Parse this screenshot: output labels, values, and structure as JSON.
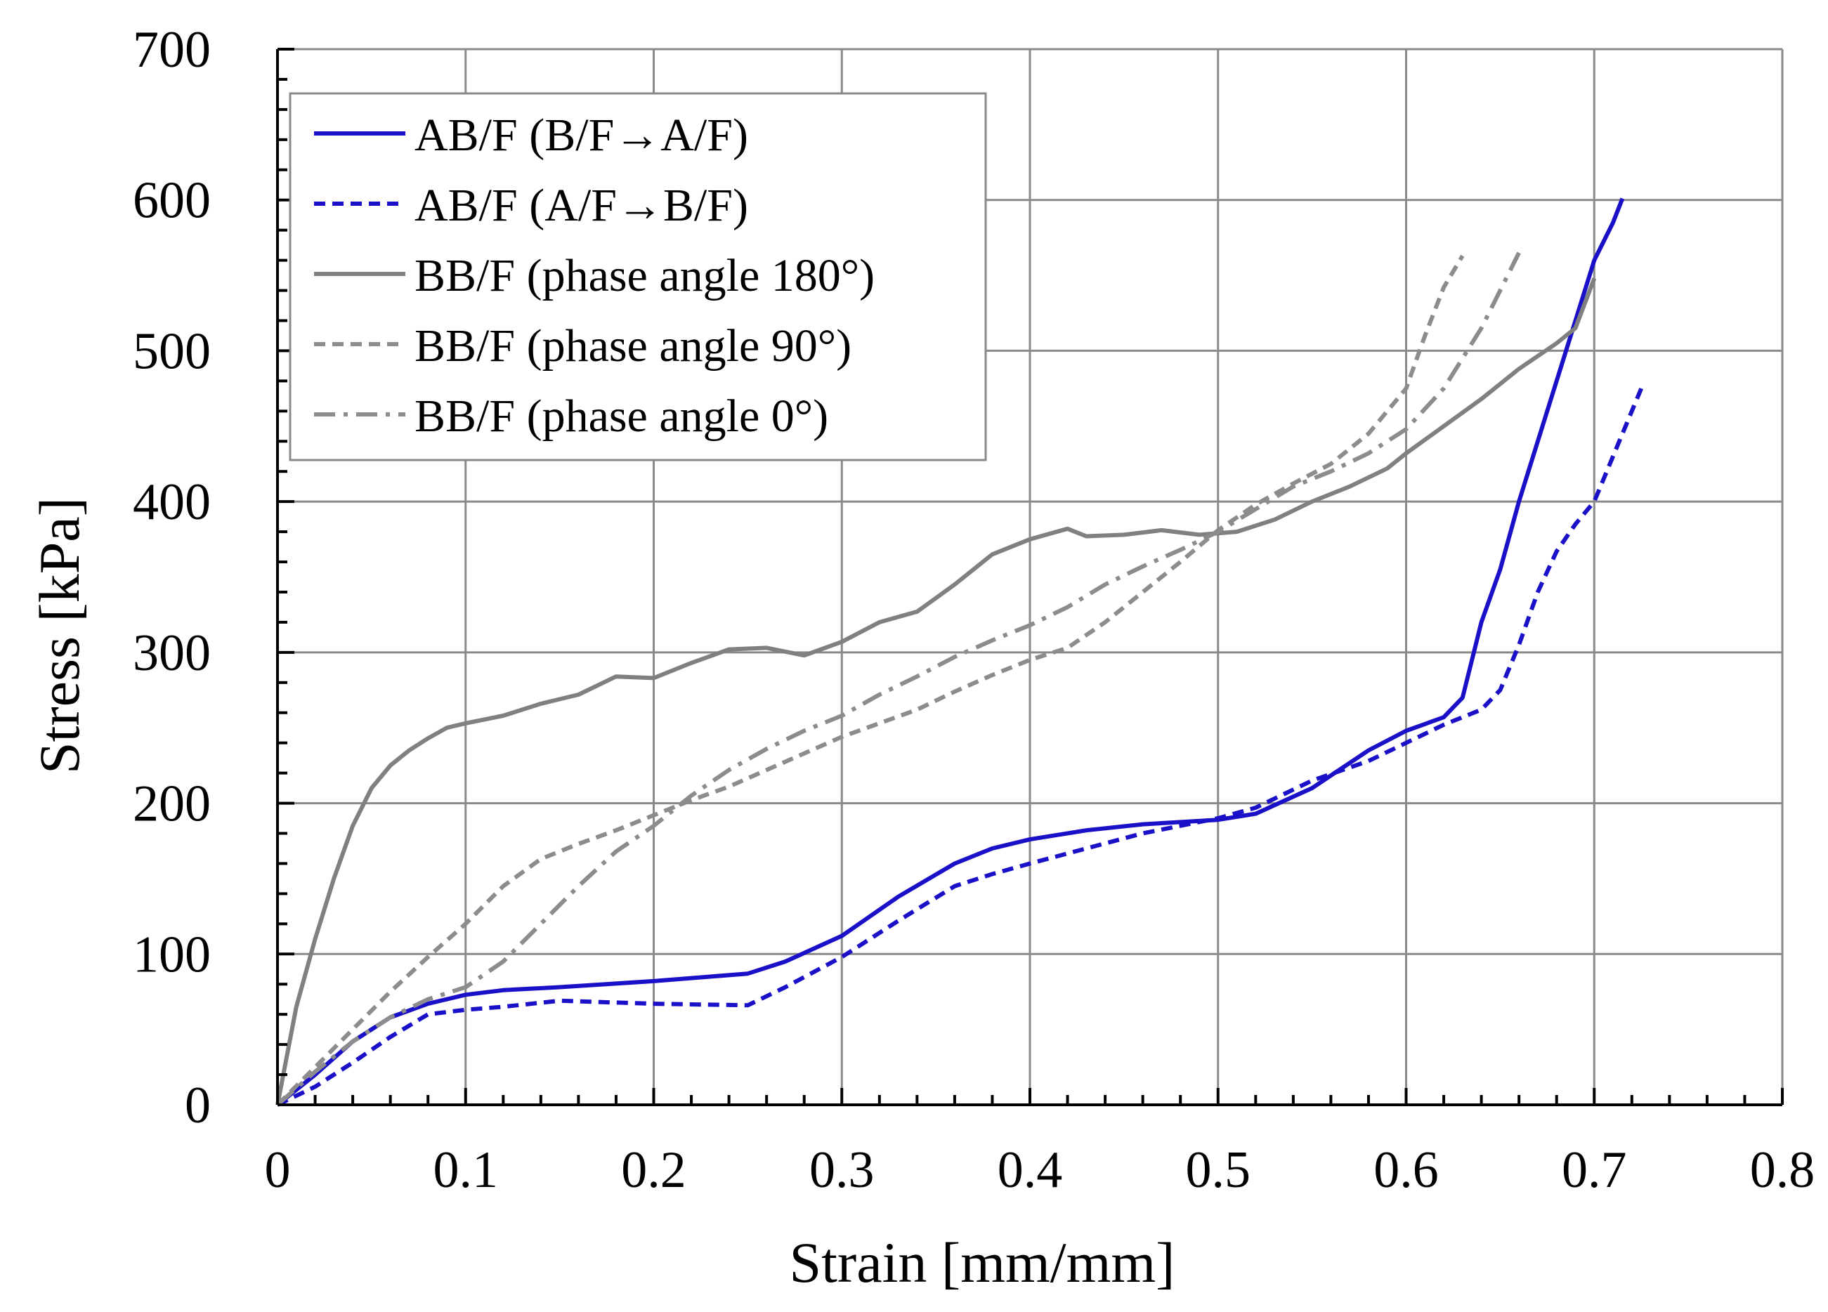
{
  "chart_data": {
    "type": "line",
    "title": "",
    "xlabel": "Strain [mm/mm]",
    "ylabel": "Stress [kPa]",
    "xlim": [
      0,
      0.8
    ],
    "ylim": [
      0,
      700
    ],
    "xticks": [
      0,
      0.1,
      0.2,
      0.3,
      0.4,
      0.5,
      0.6,
      0.7,
      0.8
    ],
    "xtick_labels": [
      "0",
      "0.1",
      "0.2",
      "0.3",
      "0.4",
      "0.5",
      "0.6",
      "0.7",
      "0.8"
    ],
    "yticks": [
      0,
      100,
      200,
      300,
      400,
      500,
      600,
      700
    ],
    "ytick_labels": [
      "0",
      "100",
      "200",
      "300",
      "400",
      "500",
      "600",
      "700"
    ],
    "grid": true,
    "legend_position": "top-left",
    "series": [
      {
        "name": "AB/F (B/F→A/F)",
        "color": "#1a10c8",
        "dash": "solid",
        "points": [
          [
            0,
            0
          ],
          [
            0.02,
            20
          ],
          [
            0.04,
            42
          ],
          [
            0.06,
            58
          ],
          [
            0.08,
            67
          ],
          [
            0.1,
            73
          ],
          [
            0.12,
            76
          ],
          [
            0.15,
            78
          ],
          [
            0.2,
            82
          ],
          [
            0.25,
            87
          ],
          [
            0.27,
            95
          ],
          [
            0.3,
            112
          ],
          [
            0.33,
            138
          ],
          [
            0.36,
            160
          ],
          [
            0.38,
            170
          ],
          [
            0.4,
            176
          ],
          [
            0.43,
            182
          ],
          [
            0.46,
            186
          ],
          [
            0.5,
            189
          ],
          [
            0.52,
            193
          ],
          [
            0.55,
            210
          ],
          [
            0.58,
            235
          ],
          [
            0.6,
            248
          ],
          [
            0.62,
            257
          ],
          [
            0.63,
            270
          ],
          [
            0.64,
            320
          ],
          [
            0.65,
            355
          ],
          [
            0.66,
            400
          ],
          [
            0.68,
            480
          ],
          [
            0.69,
            520
          ],
          [
            0.7,
            560
          ],
          [
            0.71,
            585
          ],
          [
            0.715,
            601
          ]
        ]
      },
      {
        "name": "AB/F (A/F→B/F)",
        "color": "#1a10c8",
        "dash": "dashed",
        "points": [
          [
            0,
            0
          ],
          [
            0.02,
            12
          ],
          [
            0.04,
            28
          ],
          [
            0.06,
            45
          ],
          [
            0.08,
            60
          ],
          [
            0.1,
            63
          ],
          [
            0.12,
            65
          ],
          [
            0.15,
            69
          ],
          [
            0.2,
            67
          ],
          [
            0.25,
            66
          ],
          [
            0.27,
            78
          ],
          [
            0.3,
            98
          ],
          [
            0.33,
            122
          ],
          [
            0.36,
            145
          ],
          [
            0.38,
            153
          ],
          [
            0.4,
            160
          ],
          [
            0.43,
            170
          ],
          [
            0.46,
            180
          ],
          [
            0.5,
            190
          ],
          [
            0.52,
            197
          ],
          [
            0.55,
            215
          ],
          [
            0.58,
            228
          ],
          [
            0.6,
            240
          ],
          [
            0.62,
            252
          ],
          [
            0.64,
            262
          ],
          [
            0.65,
            275
          ],
          [
            0.66,
            305
          ],
          [
            0.67,
            340
          ],
          [
            0.68,
            367
          ],
          [
            0.69,
            385
          ],
          [
            0.7,
            400
          ],
          [
            0.71,
            430
          ],
          [
            0.725,
            475
          ]
        ]
      },
      {
        "name": "BB/F (phase angle 180°)",
        "color": "#808080",
        "dash": "solid",
        "points": [
          [
            0,
            0
          ],
          [
            0.01,
            65
          ],
          [
            0.02,
            110
          ],
          [
            0.03,
            150
          ],
          [
            0.04,
            185
          ],
          [
            0.05,
            210
          ],
          [
            0.06,
            225
          ],
          [
            0.07,
            235
          ],
          [
            0.08,
            243
          ],
          [
            0.09,
            250
          ],
          [
            0.1,
            253
          ],
          [
            0.12,
            258
          ],
          [
            0.14,
            266
          ],
          [
            0.16,
            272
          ],
          [
            0.18,
            284
          ],
          [
            0.2,
            283
          ],
          [
            0.22,
            293
          ],
          [
            0.24,
            302
          ],
          [
            0.26,
            303
          ],
          [
            0.28,
            298
          ],
          [
            0.3,
            307
          ],
          [
            0.32,
            320
          ],
          [
            0.34,
            327
          ],
          [
            0.36,
            345
          ],
          [
            0.38,
            365
          ],
          [
            0.4,
            375
          ],
          [
            0.42,
            382
          ],
          [
            0.43,
            377
          ],
          [
            0.45,
            378
          ],
          [
            0.47,
            381
          ],
          [
            0.49,
            378
          ],
          [
            0.51,
            380
          ],
          [
            0.53,
            388
          ],
          [
            0.55,
            400
          ],
          [
            0.57,
            410
          ],
          [
            0.59,
            422
          ],
          [
            0.6,
            432
          ],
          [
            0.62,
            450
          ],
          [
            0.64,
            468
          ],
          [
            0.66,
            488
          ],
          [
            0.68,
            505
          ],
          [
            0.69,
            515
          ],
          [
            0.7,
            548
          ]
        ]
      },
      {
        "name": "BB/F (phase angle 90°)",
        "color": "#8c8c8c",
        "dash": "dashed",
        "points": [
          [
            0,
            0
          ],
          [
            0.02,
            25
          ],
          [
            0.04,
            50
          ],
          [
            0.06,
            75
          ],
          [
            0.08,
            98
          ],
          [
            0.1,
            120
          ],
          [
            0.12,
            145
          ],
          [
            0.14,
            163
          ],
          [
            0.16,
            173
          ],
          [
            0.18,
            182
          ],
          [
            0.2,
            192
          ],
          [
            0.22,
            202
          ],
          [
            0.24,
            211
          ],
          [
            0.26,
            222
          ],
          [
            0.28,
            233
          ],
          [
            0.3,
            244
          ],
          [
            0.32,
            253
          ],
          [
            0.34,
            262
          ],
          [
            0.36,
            274
          ],
          [
            0.38,
            285
          ],
          [
            0.4,
            295
          ],
          [
            0.42,
            303
          ],
          [
            0.44,
            320
          ],
          [
            0.46,
            340
          ],
          [
            0.48,
            360
          ],
          [
            0.5,
            381
          ],
          [
            0.52,
            398
          ],
          [
            0.54,
            412
          ],
          [
            0.56,
            425
          ],
          [
            0.58,
            445
          ],
          [
            0.6,
            475
          ],
          [
            0.61,
            510
          ],
          [
            0.62,
            542
          ],
          [
            0.63,
            563
          ]
        ]
      },
      {
        "name": "BB/F (phase angle 0°)",
        "color": "#8c8c8c",
        "dash": "dashdot",
        "points": [
          [
            0,
            0
          ],
          [
            0.02,
            22
          ],
          [
            0.04,
            42
          ],
          [
            0.06,
            58
          ],
          [
            0.08,
            70
          ],
          [
            0.1,
            78
          ],
          [
            0.12,
            95
          ],
          [
            0.14,
            120
          ],
          [
            0.16,
            145
          ],
          [
            0.18,
            168
          ],
          [
            0.2,
            185
          ],
          [
            0.22,
            205
          ],
          [
            0.24,
            222
          ],
          [
            0.26,
            236
          ],
          [
            0.28,
            248
          ],
          [
            0.3,
            258
          ],
          [
            0.32,
            272
          ],
          [
            0.34,
            284
          ],
          [
            0.36,
            297
          ],
          [
            0.38,
            308
          ],
          [
            0.4,
            318
          ],
          [
            0.42,
            330
          ],
          [
            0.44,
            345
          ],
          [
            0.46,
            357
          ],
          [
            0.48,
            368
          ],
          [
            0.5,
            380
          ],
          [
            0.52,
            395
          ],
          [
            0.54,
            410
          ],
          [
            0.56,
            420
          ],
          [
            0.58,
            432
          ],
          [
            0.6,
            448
          ],
          [
            0.62,
            475
          ],
          [
            0.64,
            515
          ],
          [
            0.66,
            565
          ]
        ]
      }
    ]
  }
}
